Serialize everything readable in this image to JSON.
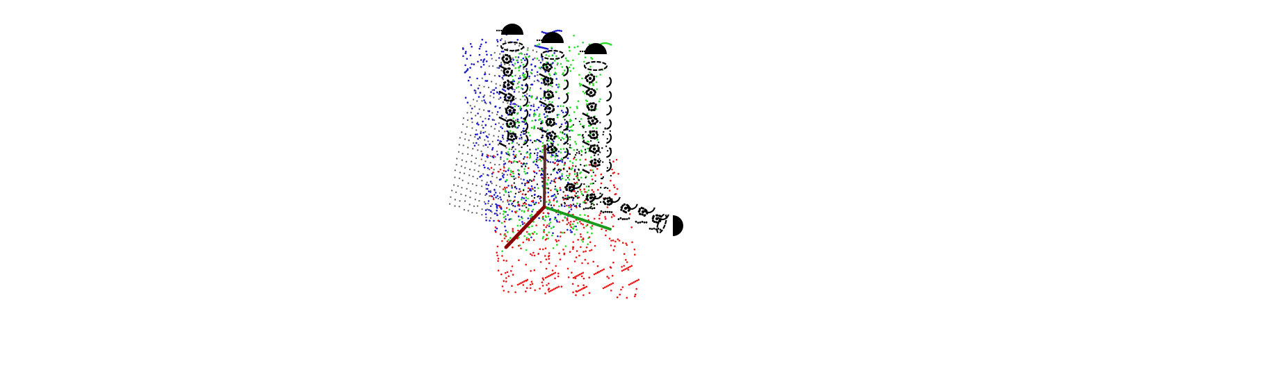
{
  "scene": {
    "background": "#ffffff",
    "axes": [
      {
        "name": "x-axis",
        "color": "#8b0000"
      },
      {
        "name": "y-axis",
        "color": "#1a9a1a"
      },
      {
        "name": "z-axis",
        "color": "#5a2b2b"
      }
    ],
    "point_clouds": [
      {
        "name": "gray-cloud",
        "color": "#666666"
      },
      {
        "name": "blue-cloud",
        "color": "#1a1acc"
      },
      {
        "name": "green-cloud",
        "color": "#22dd22"
      },
      {
        "name": "red-cloud",
        "color": "#ee1111"
      },
      {
        "name": "black-cloud",
        "color": "#000000"
      }
    ],
    "shapes": [
      "hemisphere-cap",
      "ring",
      "arc-segment"
    ]
  }
}
